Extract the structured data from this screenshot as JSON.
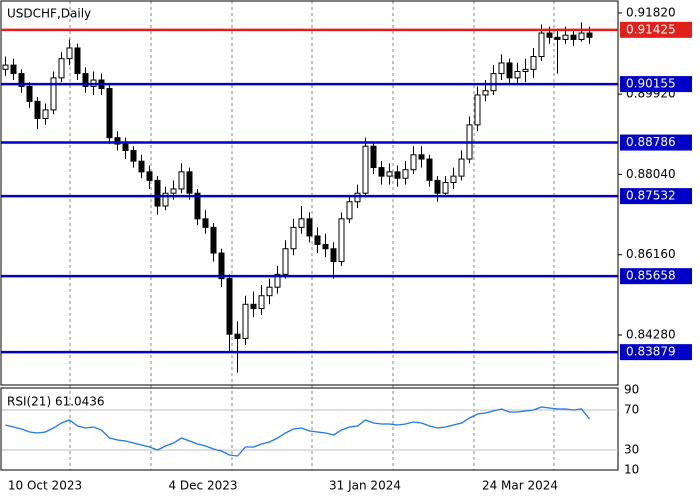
{
  "chart_data": {
    "type": "candlestick",
    "title": "USDCHF,Daily",
    "ylim": [
      0.8311,
      0.921
    ],
    "yticks": [
      {
        "value": 0.9182,
        "label": "0.91820"
      },
      {
        "value": 0.8992,
        "label": "0.89920"
      },
      {
        "value": 0.8804,
        "label": "0.88040"
      },
      {
        "value": 0.8616,
        "label": "0.86160"
      },
      {
        "value": 0.8428,
        "label": "0.84280"
      }
    ],
    "x_labels": [
      "10 Oct 2023",
      "4 Dec 2023",
      "31 Jan 2024",
      "24 Mar 2024"
    ],
    "levels": [
      {
        "value": 0.91425,
        "label": "0.91425",
        "color": "#e0201b"
      },
      {
        "value": 0.90155,
        "label": "0.90155",
        "color": "#0000c8"
      },
      {
        "value": 0.88786,
        "label": "0.88786",
        "color": "#0000c8"
      },
      {
        "value": 0.87532,
        "label": "0.87532",
        "color": "#0000c8"
      },
      {
        "value": 0.85658,
        "label": "0.85658",
        "color": "#0000c8"
      },
      {
        "value": 0.83879,
        "label": "0.83879",
        "color": "#0000c8"
      }
    ],
    "candles": [
      [
        0.905,
        0.908,
        0.9035,
        0.906
      ],
      [
        0.906,
        0.9075,
        0.9025,
        0.904
      ],
      [
        0.904,
        0.905,
        0.8995,
        0.901
      ],
      [
        0.901,
        0.902,
        0.896,
        0.8975
      ],
      [
        0.8975,
        0.8985,
        0.891,
        0.8935
      ],
      [
        0.8935,
        0.897,
        0.892,
        0.8955
      ],
      [
        0.8955,
        0.9045,
        0.8945,
        0.903
      ],
      [
        0.903,
        0.909,
        0.902,
        0.9075
      ],
      [
        0.9075,
        0.912,
        0.906,
        0.91
      ],
      [
        0.91,
        0.911,
        0.9025,
        0.904
      ],
      [
        0.904,
        0.9055,
        0.8995,
        0.901
      ],
      [
        0.901,
        0.9045,
        0.899,
        0.9025
      ],
      [
        0.9025,
        0.904,
        0.899,
        0.9005
      ],
      [
        0.9005,
        0.9015,
        0.8875,
        0.889
      ],
      [
        0.889,
        0.8905,
        0.886,
        0.8875
      ],
      [
        0.8875,
        0.889,
        0.884,
        0.886
      ],
      [
        0.886,
        0.887,
        0.882,
        0.8835
      ],
      [
        0.8835,
        0.885,
        0.8795,
        0.881
      ],
      [
        0.881,
        0.8825,
        0.877,
        0.879
      ],
      [
        0.879,
        0.88,
        0.871,
        0.873
      ],
      [
        0.873,
        0.8775,
        0.872,
        0.876
      ],
      [
        0.876,
        0.879,
        0.8745,
        0.877
      ],
      [
        0.877,
        0.883,
        0.876,
        0.881
      ],
      [
        0.881,
        0.882,
        0.8745,
        0.876
      ],
      [
        0.876,
        0.877,
        0.8685,
        0.87
      ],
      [
        0.87,
        0.872,
        0.8665,
        0.868
      ],
      [
        0.868,
        0.869,
        0.86,
        0.862
      ],
      [
        0.862,
        0.863,
        0.854,
        0.856
      ],
      [
        0.856,
        0.857,
        0.839,
        0.843
      ],
      [
        0.843,
        0.846,
        0.834,
        0.842
      ],
      [
        0.842,
        0.852,
        0.8405,
        0.85
      ],
      [
        0.85,
        0.853,
        0.847,
        0.849
      ],
      [
        0.849,
        0.8545,
        0.8475,
        0.852
      ],
      [
        0.852,
        0.856,
        0.85,
        0.854
      ],
      [
        0.854,
        0.859,
        0.8525,
        0.857
      ],
      [
        0.857,
        0.865,
        0.856,
        0.863
      ],
      [
        0.863,
        0.87,
        0.8615,
        0.868
      ],
      [
        0.868,
        0.873,
        0.8665,
        0.87
      ],
      [
        0.87,
        0.8715,
        0.8645,
        0.866
      ],
      [
        0.866,
        0.868,
        0.862,
        0.864
      ],
      [
        0.864,
        0.8665,
        0.861,
        0.863
      ],
      [
        0.863,
        0.8645,
        0.856,
        0.86
      ],
      [
        0.86,
        0.8715,
        0.859,
        0.87
      ],
      [
        0.87,
        0.8755,
        0.869,
        0.874
      ],
      [
        0.874,
        0.878,
        0.8725,
        0.876
      ],
      [
        0.876,
        0.889,
        0.875,
        0.887
      ],
      [
        0.887,
        0.888,
        0.8805,
        0.882
      ],
      [
        0.882,
        0.8835,
        0.878,
        0.88
      ],
      [
        0.88,
        0.883,
        0.878,
        0.881
      ],
      [
        0.881,
        0.8825,
        0.8775,
        0.8795
      ],
      [
        0.8795,
        0.8835,
        0.878,
        0.8815
      ],
      [
        0.8815,
        0.887,
        0.8805,
        0.885
      ],
      [
        0.885,
        0.887,
        0.882,
        0.884
      ],
      [
        0.884,
        0.885,
        0.8775,
        0.879
      ],
      [
        0.879,
        0.88,
        0.874,
        0.876
      ],
      [
        0.876,
        0.88,
        0.875,
        0.8785
      ],
      [
        0.8785,
        0.882,
        0.877,
        0.88
      ],
      [
        0.88,
        0.886,
        0.879,
        0.884
      ],
      [
        0.884,
        0.894,
        0.883,
        0.892
      ],
      [
        0.892,
        0.901,
        0.8905,
        0.899
      ],
      [
        0.899,
        0.9025,
        0.8975,
        0.9
      ],
      [
        0.9,
        0.906,
        0.899,
        0.904
      ],
      [
        0.904,
        0.9085,
        0.9025,
        0.9065
      ],
      [
        0.9065,
        0.9075,
        0.9015,
        0.903
      ],
      [
        0.903,
        0.9065,
        0.9015,
        0.9045
      ],
      [
        0.9045,
        0.9075,
        0.902,
        0.905
      ],
      [
        0.905,
        0.91,
        0.903,
        0.908
      ],
      [
        0.908,
        0.9155,
        0.907,
        0.9135
      ],
      [
        0.9135,
        0.915,
        0.911,
        0.9125
      ],
      [
        0.9125,
        0.9145,
        0.904,
        0.912
      ],
      [
        0.912,
        0.915,
        0.911,
        0.913
      ],
      [
        0.913,
        0.9145,
        0.9105,
        0.912
      ],
      [
        0.912,
        0.916,
        0.9115,
        0.9135
      ],
      [
        0.9135,
        0.915,
        0.911,
        0.9125
      ]
    ],
    "indicator": {
      "type": "line",
      "title": "RSI(21) 61.0436",
      "color": "#1e78e6",
      "ylim": [
        10,
        92
      ],
      "yticks": [
        90,
        70,
        30,
        10
      ],
      "levels": [
        70,
        30
      ],
      "values": [
        55,
        53,
        51,
        48,
        47,
        48,
        52,
        57,
        60,
        54,
        52,
        53,
        50,
        42,
        40,
        39,
        37,
        35,
        33,
        30,
        34,
        37,
        42,
        39,
        36,
        34,
        31,
        29,
        25,
        24,
        33,
        33,
        36,
        38,
        42,
        47,
        51,
        52,
        49,
        48,
        47,
        45,
        50,
        53,
        54,
        60,
        57,
        56,
        56,
        55,
        56,
        58,
        57,
        54,
        52,
        53,
        55,
        57,
        62,
        66,
        67,
        69,
        71,
        68,
        68,
        69,
        70,
        73,
        72,
        71,
        71,
        70,
        71,
        61
      ]
    }
  }
}
